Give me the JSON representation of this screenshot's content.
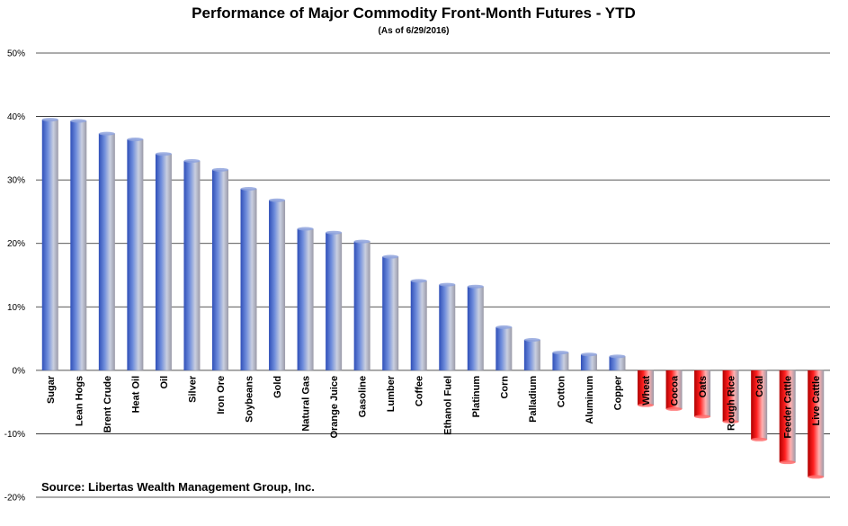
{
  "chart_data": {
    "type": "bar",
    "title": "Performance of Major Commodity Front-Month Futures - YTD",
    "subtitle": "(As of 6/29/2016)",
    "source": "Source:  Libertas Wealth Management Group, Inc.",
    "categories": [
      "Sugar",
      "Lean Hogs",
      "Brent Crude",
      "Heat Oil",
      "Oil",
      "Silver",
      "Iron Ore",
      "Soybeans",
      "Gold",
      "Natural Gas",
      "Orange Juice",
      "Gasoline",
      "Lumber",
      "Coffee",
      "Ethanol Fuel",
      "Platinum",
      "Corn",
      "Palladium",
      "Cotton",
      "Aluminum",
      "Copper",
      "Wheat",
      "Cocoa",
      "Oats",
      "Rough Rice",
      "Coal",
      "Feeder Cattle",
      "Live Cattle"
    ],
    "values": [
      39.5,
      39.3,
      37.3,
      36.4,
      34.1,
      33.0,
      31.6,
      28.6,
      26.8,
      22.3,
      21.7,
      20.3,
      17.9,
      14.1,
      13.5,
      13.2,
      6.8,
      4.8,
      2.8,
      2.5,
      2.2,
      -5.5,
      -6.1,
      -7.3,
      -8.1,
      -10.9,
      -14.5,
      -16.8
    ],
    "ylim": [
      -20,
      50
    ],
    "ytick_labels": [
      "-20%",
      "-10%",
      "0%",
      "10%",
      "20%",
      "30%",
      "40%",
      "50%"
    ],
    "grid": true,
    "legend": "none",
    "colors": {
      "positive_dark": "#2f4fb8",
      "positive_mid": "#6f8ddc",
      "positive_light": "#c9cfe0",
      "negative_dark": "#b00000",
      "negative_mid": "#ff2020",
      "negative_light": "#ffb0b0"
    }
  }
}
